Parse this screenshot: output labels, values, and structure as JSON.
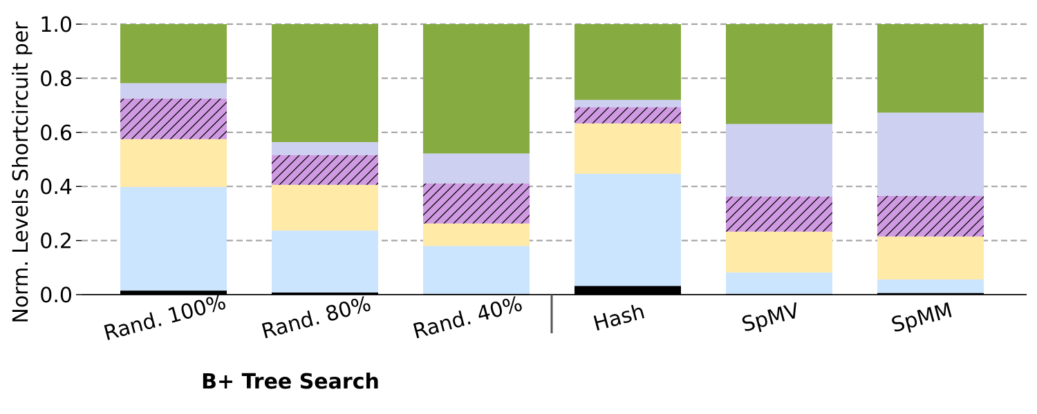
{
  "chart_data": {
    "type": "bar",
    "stacked": true,
    "ylabel": "Norm. Levels Shortcircuit per",
    "ylim": [
      0,
      1.0
    ],
    "yticks": [
      "0.0",
      "0.2",
      "0.4",
      "0.6",
      "0.8",
      "1.0"
    ],
    "grid": "horizontal dashed",
    "categories": [
      "Rand. 100%",
      "Rand. 80%",
      "Rand. 40%",
      "Hash",
      "SpMV",
      "SpMM"
    ],
    "group_label": "B+ Tree Search",
    "series": [
      {
        "color": "#000000",
        "hatch": false,
        "values": [
          0.015,
          0.008,
          0.003,
          0.032,
          0.003,
          0.006
        ]
      },
      {
        "color": "#cce5ff",
        "hatch": false,
        "values": [
          0.383,
          0.229,
          0.177,
          0.415,
          0.079,
          0.05
        ]
      },
      {
        "color": "#ffeaa7",
        "hatch": false,
        "values": [
          0.177,
          0.169,
          0.083,
          0.186,
          0.151,
          0.159
        ]
      },
      {
        "color": "#cf9ae2",
        "hatch": true,
        "values": [
          0.15,
          0.11,
          0.148,
          0.06,
          0.13,
          0.15
        ]
      },
      {
        "color": "#cdd0f0",
        "hatch": false,
        "values": [
          0.057,
          0.048,
          0.111,
          0.027,
          0.268,
          0.308
        ]
      },
      {
        "color": "#86ab40",
        "hatch": false,
        "values": [
          0.218,
          0.436,
          0.478,
          0.28,
          0.369,
          0.327
        ]
      }
    ]
  }
}
